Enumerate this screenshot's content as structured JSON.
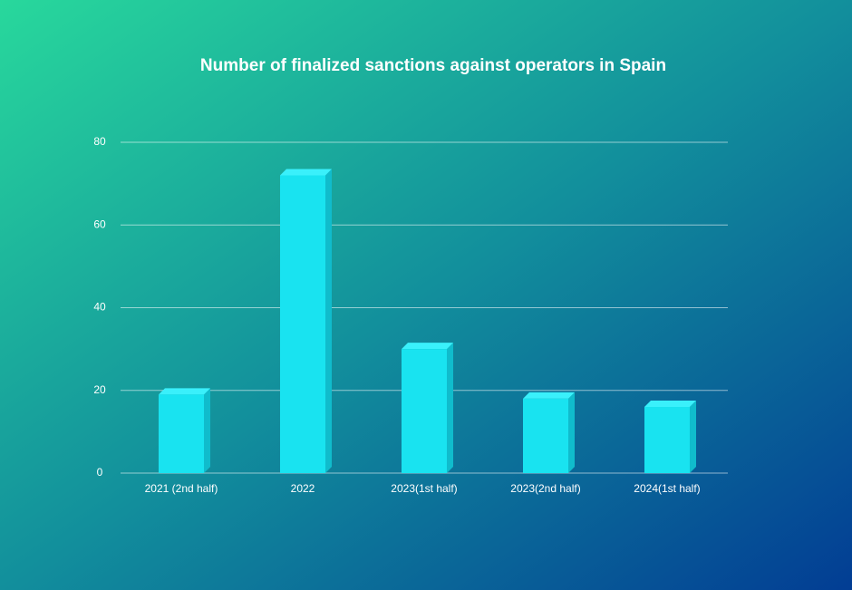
{
  "chart_data": {
    "type": "bar",
    "title": "Number of finalized sanctions against operators in Spain",
    "categories": [
      "2021 (2nd half)",
      "2022",
      "2023(1st half)",
      "2023(2nd half)",
      "2024(1st half)"
    ],
    "values": [
      19,
      72,
      30,
      18,
      16
    ],
    "color": "#19e3f0",
    "ylim": [
      0,
      80
    ],
    "yticks": [
      0,
      20,
      40,
      60,
      80
    ],
    "grid": true
  }
}
